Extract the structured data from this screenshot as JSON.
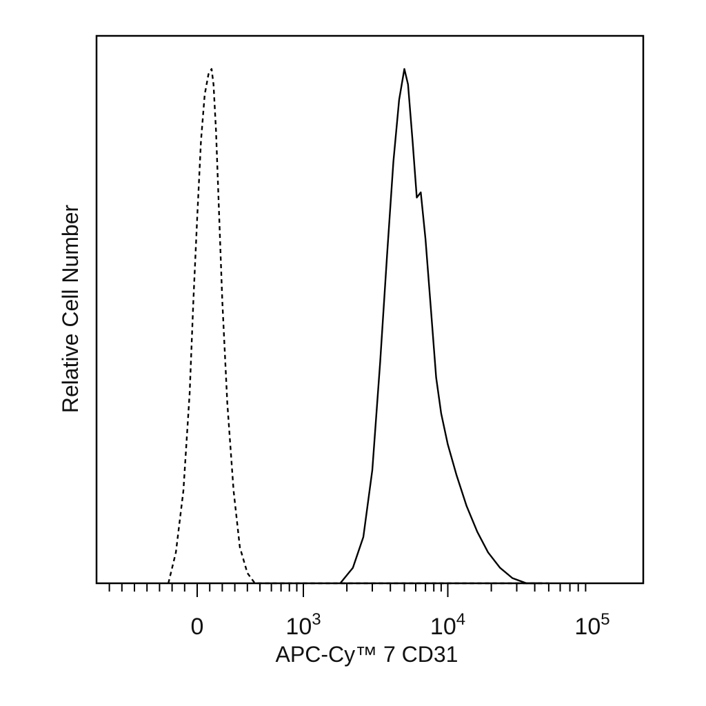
{
  "chart_data": {
    "type": "line",
    "title": "",
    "xlabel": "APC-Cy™ 7 CD31",
    "ylabel": "Relative Cell Number",
    "x_scale": "biexponential",
    "x_tick_labels": [
      {
        "value": 0,
        "base": "0",
        "exp": ""
      },
      {
        "value": 1000,
        "base": "10",
        "exp": "3"
      },
      {
        "value": 10000,
        "base": "10",
        "exp": "4"
      },
      {
        "value": 100000,
        "base": "10",
        "exp": "5"
      }
    ],
    "y_tick_labels": [],
    "grid": false,
    "legend": "none",
    "xlim": [
      -500,
      250000
    ],
    "ylim": [
      0,
      1
    ],
    "series": [
      {
        "style": "dashed",
        "x": [
          -230,
          -170,
          -110,
          -60,
          -30,
          0,
          30,
          60,
          90,
          115,
          130,
          150,
          170,
          200,
          240,
          290,
          340,
          400,
          460,
          560,
          700,
          1000,
          2000,
          5000,
          10000,
          30000,
          50000
        ],
        "y": [
          0.0,
          0.06,
          0.18,
          0.37,
          0.55,
          0.71,
          0.86,
          0.95,
          0.99,
          1.0,
          0.97,
          0.88,
          0.75,
          0.55,
          0.35,
          0.18,
          0.07,
          0.02,
          0.0,
          0.0,
          0.0,
          0.0,
          0.0,
          0.0,
          0.0,
          0.0,
          0.0
        ]
      },
      {
        "style": "solid",
        "x": [
          1800,
          2200,
          2600,
          3000,
          3400,
          3800,
          4200,
          4600,
          5000,
          5300,
          5700,
          6100,
          6500,
          7000,
          7600,
          8300,
          9000,
          10000,
          11500,
          13500,
          16000,
          19000,
          23000,
          28000,
          35000,
          45000
        ],
        "y": [
          0.0,
          0.03,
          0.09,
          0.22,
          0.43,
          0.64,
          0.82,
          0.94,
          1.0,
          0.97,
          0.86,
          0.75,
          0.76,
          0.67,
          0.54,
          0.4,
          0.33,
          0.27,
          0.21,
          0.15,
          0.1,
          0.06,
          0.03,
          0.01,
          0.0,
          0.0
        ]
      }
    ]
  }
}
